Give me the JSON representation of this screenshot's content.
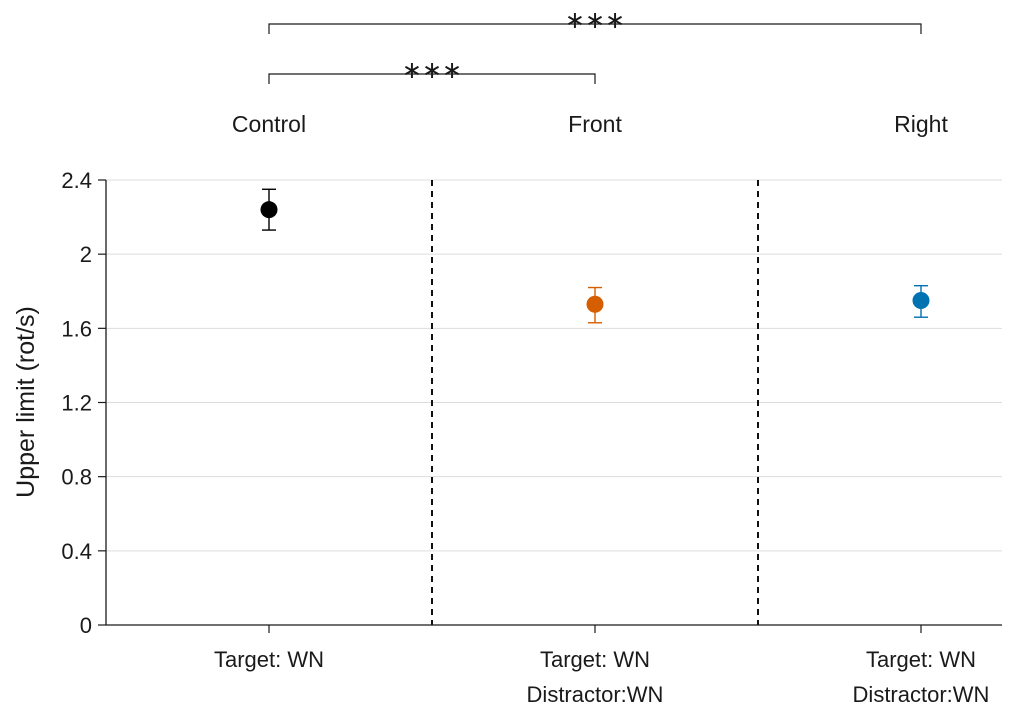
{
  "chart_data": {
    "type": "scatter",
    "title": "",
    "ylabel": "Upper limit (rot/s)",
    "xlabel": "",
    "ylim": [
      0,
      2.4
    ],
    "yticks": [
      "0",
      "0.4",
      "0.8",
      "1.2",
      "1.6",
      "2",
      "2.4"
    ],
    "ytick_values": [
      0,
      0.4,
      0.8,
      1.2,
      1.6,
      2.0,
      2.4
    ],
    "grid": true,
    "groups": [
      "Control",
      "Front",
      "Right"
    ],
    "categories": [
      [
        "Target: WN"
      ],
      [
        "Target: WN",
        "Distractor:WN"
      ],
      [
        "Target: WN",
        "Distractor:WN"
      ]
    ],
    "series": [
      {
        "values": [
          2.24
        ],
        "err_low": [
          2.13
        ],
        "err_high": [
          2.35
        ],
        "color": "#000000"
      },
      {
        "values": [
          1.73
        ],
        "err_low": [
          1.63
        ],
        "err_high": [
          1.82
        ],
        "color": "#d55e00"
      },
      {
        "values": [
          1.75
        ],
        "err_low": [
          1.66
        ],
        "err_high": [
          1.83
        ],
        "color": "#0072b2"
      }
    ],
    "significance": [
      {
        "from": 0,
        "to": 1,
        "label": "∗∗∗"
      },
      {
        "from": 0,
        "to": 2,
        "label": "∗∗∗"
      }
    ]
  }
}
